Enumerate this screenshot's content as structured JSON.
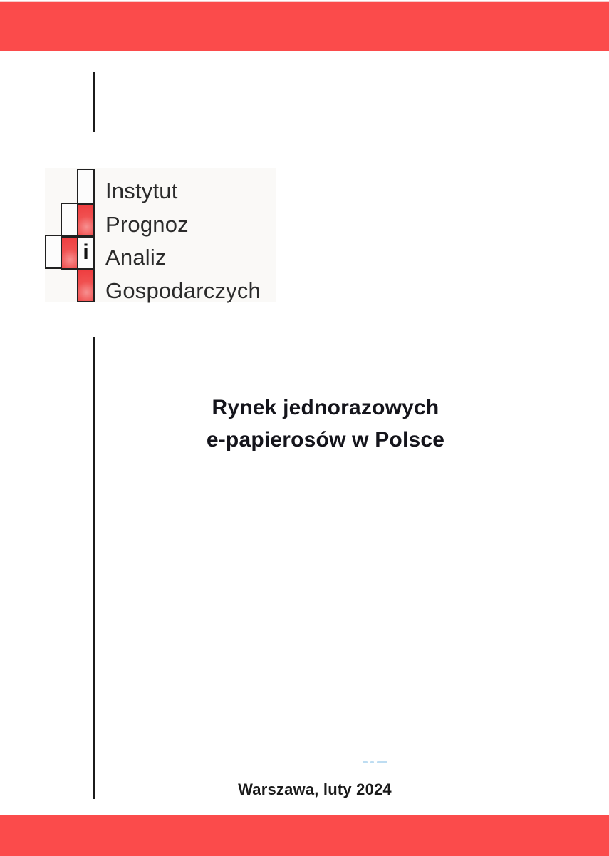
{
  "logo": {
    "connector_letter": "i",
    "lines": [
      "Instytut",
      "Prognoz",
      "Analiz",
      "Gospodarczych"
    ]
  },
  "title": {
    "line1": "Rynek jednorazowych",
    "line2": "e-papierosów w Polsce"
  },
  "footer": {
    "place_date": "Warszawa, luty 2024"
  },
  "colors": {
    "band_red": "#fb4b4b",
    "logo_red": "#ee3c3e",
    "ink": "#1b1b1b",
    "logo_backdrop": "#faf9f7"
  }
}
